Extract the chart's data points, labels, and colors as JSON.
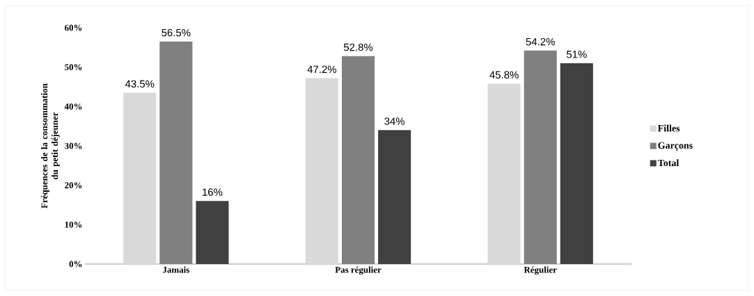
{
  "chart_data": {
    "type": "bar",
    "ylabel": "Fréquences de la consommation du petit déjeuner",
    "categories": [
      "Jamais",
      "Pas régulier",
      "Régulier"
    ],
    "series": [
      {
        "name": "Filles",
        "color": "#d9d9d9",
        "values": [
          43.5,
          47.2,
          45.8
        ],
        "value_labels": [
          "43.5%",
          "47.2%",
          "45.8%"
        ]
      },
      {
        "name": "Garçons",
        "color": "#808080",
        "values": [
          56.5,
          52.8,
          54.2
        ],
        "value_labels": [
          "56.5%",
          "52.8%",
          "54.2%"
        ]
      },
      {
        "name": "Total",
        "color": "#404040",
        "values": [
          16,
          34,
          51
        ],
        "value_labels": [
          "16%",
          "34%",
          "51%"
        ]
      }
    ],
    "ylim": [
      0,
      60
    ],
    "yticks": [
      {
        "value": 0,
        "label": "0%"
      },
      {
        "value": 10,
        "label": "10%"
      },
      {
        "value": 20,
        "label": "20%"
      },
      {
        "value": 30,
        "label": "30%"
      },
      {
        "value": 40,
        "label": "40%"
      },
      {
        "value": 50,
        "label": "50%"
      },
      {
        "value": 60,
        "label": "60%"
      }
    ],
    "legend": "right"
  }
}
